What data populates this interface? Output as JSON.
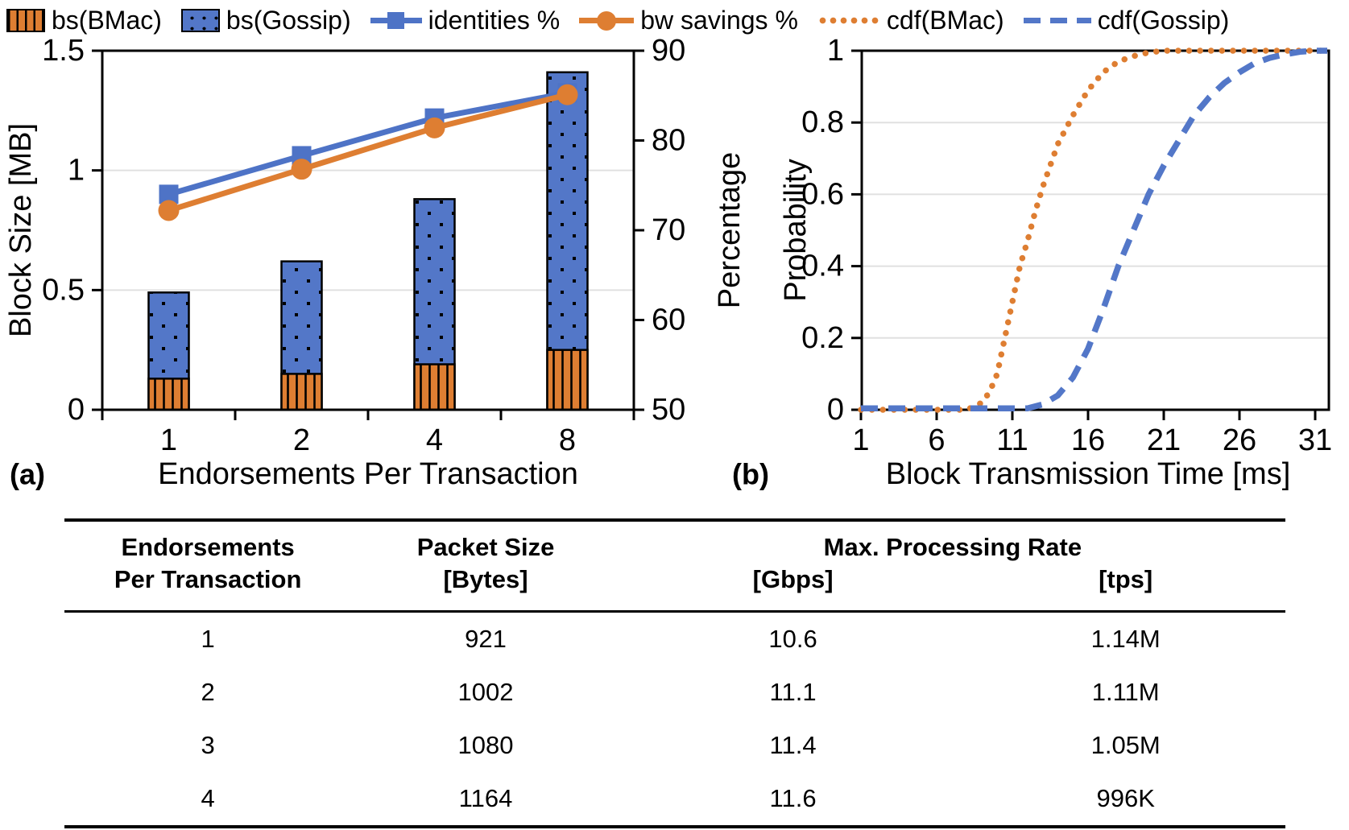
{
  "colors": {
    "orange": "#DE7E32",
    "blue": "#5377C8",
    "blue_line": "#4E73C6",
    "grid": "#E0E0E0",
    "axis": "#000000"
  },
  "legend": {
    "items": [
      {
        "label": "bs(BMac)",
        "type": "bar-hatched",
        "color": "#DE7E32"
      },
      {
        "label": "bs(Gossip)",
        "type": "bar-dotted",
        "color": "#5377C8"
      },
      {
        "label": "identities %",
        "type": "line-square",
        "color": "#4E73C6"
      },
      {
        "label": "bw savings %",
        "type": "line-circle",
        "color": "#DE7E32"
      },
      {
        "label": "cdf(BMac)",
        "type": "dotted-line",
        "color": "#DE7E32"
      },
      {
        "label": "cdf(Gossip)",
        "type": "dashed-line",
        "color": "#5377C8"
      }
    ]
  },
  "chart_data": [
    {
      "id": "chart-a",
      "type": "bar",
      "panel_label": "(a)",
      "categories": [
        "1",
        "2",
        "4",
        "8"
      ],
      "xlabel": "Endorsements Per Transaction",
      "ylabel_left": "Block Size [MB]",
      "ylabel_right": "Percentage",
      "ylim_left": [
        0,
        1.5
      ],
      "yticks_left": [
        "0",
        "0.5",
        "1",
        "1.5"
      ],
      "ylim_right": [
        50,
        90
      ],
      "yticks_right": [
        "50",
        "60",
        "70",
        "80",
        "90"
      ],
      "gridlines_left": [
        0.5,
        1.0
      ],
      "legend_position": "top",
      "series": [
        {
          "name": "bs(BMac)",
          "kind": "bar",
          "axis": "left",
          "style": "hatch-vertical",
          "color": "#DE7E32",
          "values": [
            0.13,
            0.15,
            0.19,
            0.25
          ]
        },
        {
          "name": "bs(Gossip)",
          "kind": "bar",
          "axis": "left",
          "style": "dots",
          "color": "#5377C8",
          "values": [
            0.49,
            0.62,
            0.88,
            1.41
          ]
        },
        {
          "name": "identities %",
          "kind": "line",
          "axis": "right",
          "marker": "square",
          "color": "#4E73C6",
          "values": [
            74,
            78.3,
            82.5,
            85.3
          ]
        },
        {
          "name": "bw savings %",
          "kind": "line",
          "axis": "right",
          "marker": "circle",
          "color": "#DE7E32",
          "values": [
            72.2,
            76.8,
            81.4,
            85.1
          ]
        }
      ]
    },
    {
      "id": "chart-b",
      "type": "line",
      "panel_label": "(b)",
      "xlabel": "Block Transmission Time [ms]",
      "ylabel": "Probability",
      "xlim": [
        1,
        32
      ],
      "xticks": [
        "1",
        "6",
        "11",
        "16",
        "21",
        "26",
        "31"
      ],
      "ylim": [
        0,
        1
      ],
      "yticks": [
        "0",
        "0.2",
        "0.4",
        "0.6",
        "0.8",
        "1"
      ],
      "gridlines": [
        0.2,
        0.4,
        0.6,
        0.8
      ],
      "series": [
        {
          "name": "cdf(BMac)",
          "style": "dotted",
          "color": "#DE7E32",
          "points": [
            [
              1,
              0
            ],
            [
              8,
              0
            ],
            [
              9,
              0.02
            ],
            [
              9.5,
              0.05
            ],
            [
              10,
              0.1
            ],
            [
              10.5,
              0.2
            ],
            [
              11,
              0.3
            ],
            [
              11.5,
              0.4
            ],
            [
              12,
              0.47
            ],
            [
              12.5,
              0.55
            ],
            [
              13,
              0.62
            ],
            [
              13.5,
              0.68
            ],
            [
              14,
              0.74
            ],
            [
              15,
              0.82
            ],
            [
              16,
              0.89
            ],
            [
              17,
              0.94
            ],
            [
              18,
              0.97
            ],
            [
              19,
              0.985
            ],
            [
              20,
              0.995
            ],
            [
              21,
              1
            ],
            [
              31.8,
              1
            ]
          ]
        },
        {
          "name": "cdf(Gossip)",
          "style": "dashed",
          "color": "#5377C8",
          "points": [
            [
              1,
              0.004
            ],
            [
              12,
              0.004
            ],
            [
              13,
              0.015
            ],
            [
              14,
              0.04
            ],
            [
              15,
              0.09
            ],
            [
              16,
              0.17
            ],
            [
              17,
              0.28
            ],
            [
              18,
              0.4
            ],
            [
              19,
              0.5
            ],
            [
              20,
              0.6
            ],
            [
              21,
              0.68
            ],
            [
              22,
              0.75
            ],
            [
              23,
              0.82
            ],
            [
              24,
              0.87
            ],
            [
              25,
              0.91
            ],
            [
              26,
              0.94
            ],
            [
              27,
              0.965
            ],
            [
              28,
              0.98
            ],
            [
              29,
              0.99
            ],
            [
              30,
              0.997
            ],
            [
              31,
              1
            ],
            [
              31.8,
              1
            ]
          ]
        }
      ]
    }
  ],
  "table": {
    "header": {
      "col1": [
        "Endorsements",
        "Per Transaction"
      ],
      "col2": [
        "Packet Size",
        "[Bytes]"
      ],
      "group": "Max. Processing Rate",
      "col3": "[Gbps]",
      "col4": "[tps]"
    },
    "rows": [
      [
        "1",
        "921",
        "10.6",
        "1.14M"
      ],
      [
        "2",
        "1002",
        "11.1",
        "1.11M"
      ],
      [
        "3",
        "1080",
        "11.4",
        "1.05M"
      ],
      [
        "4",
        "1164",
        "11.6",
        "996K"
      ]
    ]
  }
}
